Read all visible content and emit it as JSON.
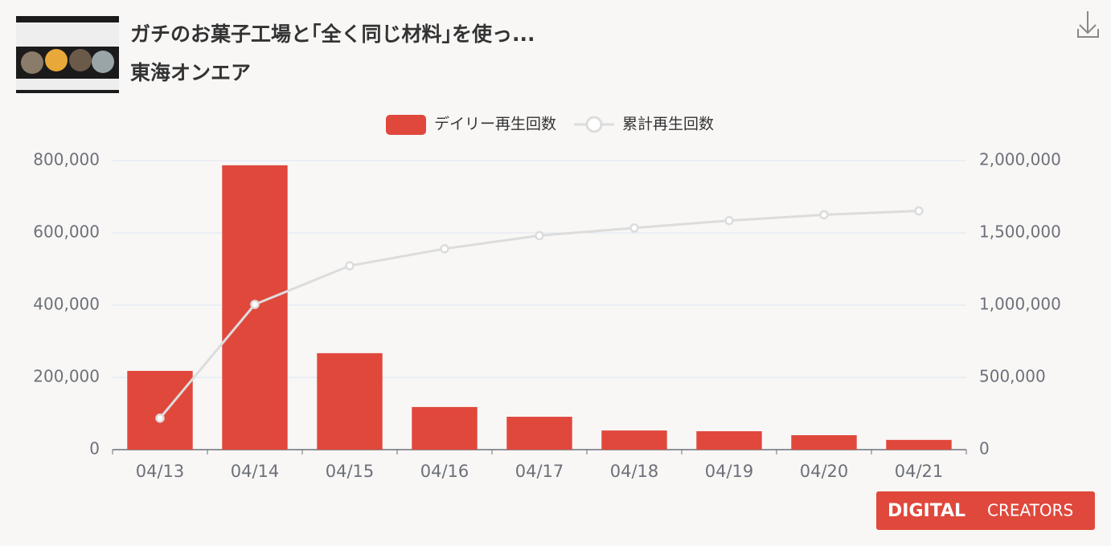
{
  "header": {
    "title": "ガチのお菓子工場と｢全く同じ材料｣を使っ...",
    "channel": "東海オンエア"
  },
  "logo": {
    "brand": "DIGITAL",
    "suffix": "CREATORS"
  },
  "chart_data": {
    "type": "bar",
    "categories": [
      "04/13",
      "04/14",
      "04/15",
      "04/16",
      "04/17",
      "04/18",
      "04/19",
      "04/20",
      "04/21"
    ],
    "series": [
      {
        "name": "デイリー再生回数",
        "type": "bar",
        "color": "#e0483c",
        "values": [
          218000,
          787000,
          267000,
          118000,
          91000,
          53000,
          51000,
          40000,
          27000
        ]
      },
      {
        "name": "累計再生回数",
        "type": "line",
        "axis": "y2",
        "color": "#dcdcdc",
        "values": [
          218000,
          1005000,
          1272000,
          1390000,
          1481000,
          1534000,
          1585000,
          1625000,
          1652000
        ]
      }
    ],
    "ylim": [
      0,
      800000
    ],
    "yticks": [
      0,
      {
        "value": 200000,
        "label": "200,000"
      },
      {
        "value": 400000,
        "label": "400,000"
      },
      {
        "value": 600000,
        "label": "600,000"
      },
      {
        "value": 800000,
        "label": "800,000"
      }
    ],
    "y2lim": [
      0,
      2000000
    ],
    "y2ticks": [
      0,
      {
        "value": 500000,
        "label": "500,000"
      },
      {
        "value": 1000000,
        "label": "1,000,000"
      },
      {
        "value": 1500000,
        "label": "1,500,000"
      },
      {
        "value": 2000000,
        "label": "2,000,000"
      }
    ],
    "grid": true,
    "legend": "top"
  }
}
